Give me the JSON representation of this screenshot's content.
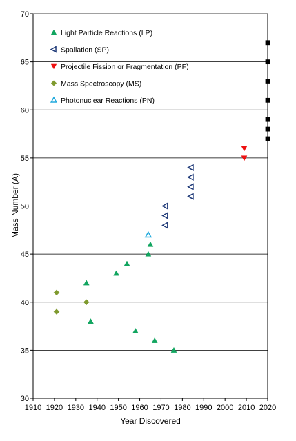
{
  "chart_data": {
    "type": "scatter",
    "title": "",
    "xlabel": "Year Discovered",
    "ylabel": "Mass Number (A)",
    "xlim": [
      1910,
      2020
    ],
    "ylim": [
      30,
      70
    ],
    "xticks": [
      "1910",
      "1920",
      "1930",
      "1940",
      "1950",
      "1960",
      "1970",
      "1980",
      "1990",
      "2000",
      "2010",
      "2020"
    ],
    "yticks": [
      "30",
      "35",
      "40",
      "45",
      "50",
      "55",
      "60",
      "65",
      "70"
    ],
    "grid": "horizontal",
    "legend_position": "top-left",
    "series": [
      {
        "name": "Light Particle Reactions (LP)",
        "marker": "triangle-up-filled",
        "color": "#12a560",
        "points": [
          [
            1935,
            42
          ],
          [
            1937,
            38
          ],
          [
            1949,
            43
          ],
          [
            1954,
            44
          ],
          [
            1958,
            37
          ],
          [
            1964,
            45
          ],
          [
            1965,
            46
          ],
          [
            1967,
            36
          ],
          [
            1976,
            35
          ]
        ]
      },
      {
        "name": "Spallation (SP)",
        "marker": "triangle-left-open",
        "color": "#1f3a78",
        "points": [
          [
            1972,
            48
          ],
          [
            1972,
            49
          ],
          [
            1972,
            50
          ],
          [
            1984,
            51
          ],
          [
            1984,
            52
          ],
          [
            1984,
            53
          ],
          [
            1984,
            54
          ]
        ]
      },
      {
        "name": "Projectile Fission or Fragmentation (PF)",
        "marker": "triangle-down-filled",
        "color": "#ee1111",
        "points": [
          [
            2009,
            55
          ],
          [
            2009,
            56
          ]
        ]
      },
      {
        "name": "Mass Spectroscopy (MS)",
        "marker": "diamond-filled",
        "color": "#7f9a2e",
        "points": [
          [
            1921,
            39
          ],
          [
            1921,
            41
          ],
          [
            1935,
            40
          ]
        ]
      },
      {
        "name": "Photonuclear Reactions (PN)",
        "marker": "triangle-up-open",
        "color": "#22aadd",
        "points": [
          [
            1964,
            47
          ]
        ]
      },
      {
        "name": "",
        "marker": "square-filled",
        "color": "#000000",
        "points": [
          [
            2020,
            57
          ],
          [
            2020,
            58
          ],
          [
            2020,
            59
          ],
          [
            2020,
            61
          ],
          [
            2020,
            63
          ],
          [
            2020,
            65
          ],
          [
            2020,
            67
          ]
        ]
      }
    ]
  }
}
